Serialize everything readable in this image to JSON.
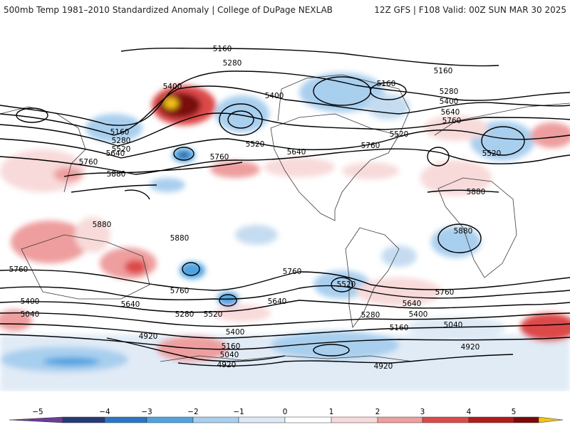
{
  "header": {
    "left_title": "500mb Temp 1981–2010 Standardized Anomaly | College of DuPage NEXLAB",
    "right_title": "12Z GFS | F108 Valid: 00Z SUN MAR 30 2025"
  },
  "map": {
    "contour_labels": [
      {
        "id": "c1",
        "text": "5160"
      },
      {
        "id": "c2",
        "text": "5280"
      },
      {
        "id": "c3",
        "text": "5400"
      },
      {
        "id": "c4",
        "text": "5400"
      },
      {
        "id": "c5",
        "text": "5160"
      },
      {
        "id": "c6",
        "text": "5160"
      },
      {
        "id": "c7",
        "text": "5280"
      },
      {
        "id": "c8",
        "text": "5400"
      },
      {
        "id": "c9",
        "text": "5640"
      },
      {
        "id": "c10",
        "text": "5760"
      },
      {
        "id": "c11",
        "text": "5160"
      },
      {
        "id": "c12",
        "text": "5280"
      },
      {
        "id": "c13",
        "text": "5520"
      },
      {
        "id": "c14",
        "text": "5640"
      },
      {
        "id": "c15",
        "text": "5760"
      },
      {
        "id": "c16",
        "text": "5520"
      },
      {
        "id": "c17",
        "text": "5760"
      },
      {
        "id": "c18",
        "text": "5640"
      },
      {
        "id": "c19",
        "text": "5520"
      },
      {
        "id": "c20",
        "text": "5760"
      },
      {
        "id": "c21",
        "text": "5520"
      },
      {
        "id": "c22",
        "text": "5880"
      },
      {
        "id": "c23",
        "text": "5880"
      },
      {
        "id": "c24",
        "text": "5880"
      },
      {
        "id": "c25",
        "text": "5880"
      },
      {
        "id": "c26",
        "text": "5880"
      },
      {
        "id": "c27",
        "text": "5760"
      },
      {
        "id": "c28",
        "text": "5760"
      },
      {
        "id": "c29",
        "text": "5760"
      },
      {
        "id": "c30",
        "text": "5520"
      },
      {
        "id": "c31",
        "text": "5760"
      },
      {
        "id": "c32",
        "text": "5640"
      },
      {
        "id": "c33",
        "text": "5400"
      },
      {
        "id": "c34",
        "text": "5040"
      },
      {
        "id": "c35",
        "text": "5280"
      },
      {
        "id": "c36",
        "text": "5520"
      },
      {
        "id": "c37",
        "text": "5640"
      },
      {
        "id": "c38",
        "text": "5640"
      },
      {
        "id": "c39",
        "text": "5400"
      },
      {
        "id": "c40",
        "text": "5280"
      },
      {
        "id": "c41",
        "text": "5400"
      },
      {
        "id": "c42",
        "text": "5160"
      },
      {
        "id": "c43",
        "text": "5040"
      },
      {
        "id": "c44",
        "text": "5160"
      },
      {
        "id": "c45",
        "text": "5040"
      },
      {
        "id": "c46",
        "text": "4920"
      },
      {
        "id": "c47",
        "text": "4920"
      },
      {
        "id": "c48",
        "text": "4920"
      },
      {
        "id": "c49",
        "text": "4920"
      }
    ]
  },
  "colorbar": {
    "tick_labels": [
      "−5",
      "−4",
      "−3",
      "−2",
      "−1",
      "0",
      "1",
      "2",
      "3",
      "4",
      "5"
    ],
    "colors": [
      "#6a3d9a",
      "#253a78",
      "#2c74c8",
      "#4fa3e0",
      "#a9cfee",
      "#dde9f5",
      "#ffffff",
      "#f8dada",
      "#ee9e9e",
      "#dd4a4a",
      "#b31b1b",
      "#7a0a0a",
      "#f2c318"
    ]
  }
}
